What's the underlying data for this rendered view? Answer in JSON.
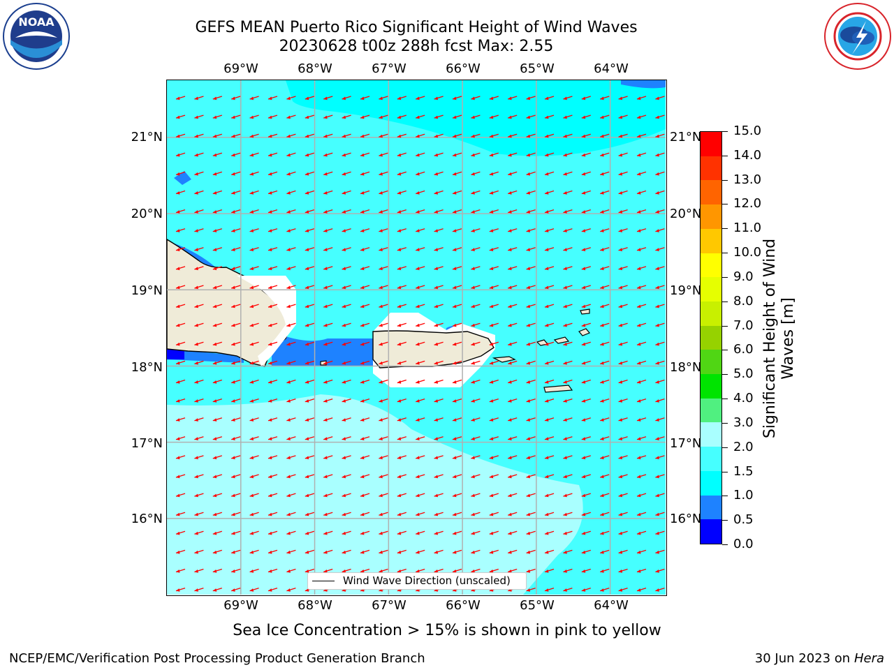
{
  "header": {
    "title_line1": "GEFS MEAN Puerto Rico Significant Height of Wind Waves",
    "title_line2": "20230628 t00z 288h fcst   Max: 2.55"
  },
  "logos": {
    "left": {
      "icon": "noaa-logo-icon",
      "text": "NOAA"
    },
    "right": {
      "icon": "nws-logo-icon"
    }
  },
  "map": {
    "lon_ticks": [
      "69°W",
      "68°W",
      "67°W",
      "66°W",
      "65°W",
      "64°W"
    ],
    "lat_ticks": [
      "21°N",
      "20°N",
      "19°N",
      "18°N",
      "17°N",
      "16°N"
    ],
    "lon_range": [
      -70.0,
      -63.25
    ],
    "lat_range": [
      15.0,
      21.75
    ],
    "grid": true,
    "vector_direction": "toward west-southwest",
    "vector_color": "#ff0000",
    "land_color": "#efebd8",
    "legend": {
      "label": "Wind Wave Direction (unscaled)",
      "placement": "bottom-center"
    }
  },
  "colorbar": {
    "label": "Significant Height of Wind Waves [m]",
    "ticks": [
      "0.0",
      "0.5",
      "1.0",
      "1.5",
      "2.0",
      "3.0",
      "4.0",
      "5.0",
      "6.0",
      "7.0",
      "8.0",
      "9.0",
      "10.0",
      "11.0",
      "12.0",
      "13.0",
      "14.0",
      "15.0"
    ],
    "colors": [
      "#0000ff",
      "#1e82ff",
      "#00ffff",
      "#46ffff",
      "#a9ffff",
      "#50f080",
      "#00e400",
      "#50d614",
      "#96d200",
      "#c8f000",
      "#e6ff00",
      "#ffff00",
      "#ffc800",
      "#ff9600",
      "#ff6400",
      "#ff3200",
      "#ff0000"
    ]
  },
  "footer": {
    "caption": "Sea Ice Concentration > 15% is shown in pink to yellow",
    "left": "NCEP/EMC/Verification Post Processing Product Generation Branch",
    "right_date": "30 Jun 2023 on",
    "right_host": "Hera"
  }
}
